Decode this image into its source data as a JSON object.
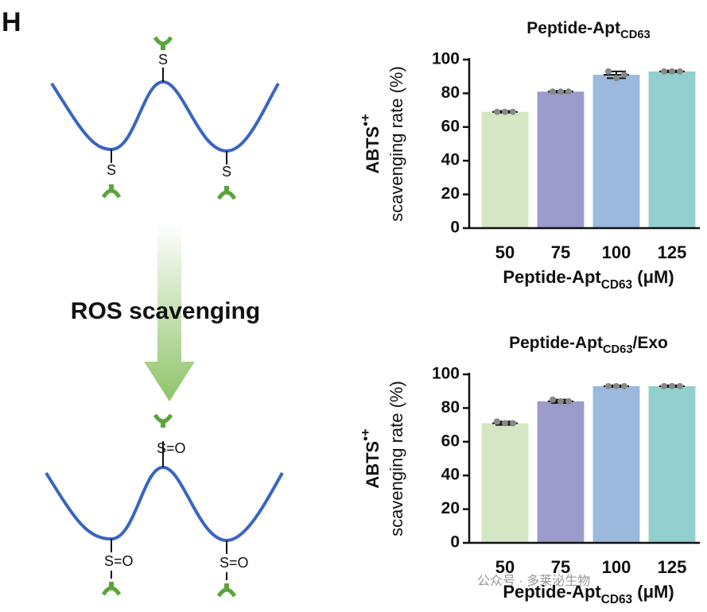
{
  "panel_label": "H",
  "diagram": {
    "top_labels": [
      "S",
      "S",
      "S"
    ],
    "arrow_label": "ROS scavenging",
    "bottom_labels": [
      "S=O",
      "S=O",
      "S=O"
    ]
  },
  "watermark": "公众号 · 多莱泌生物",
  "chart_data": [
    {
      "type": "bar",
      "title": [
        "Peptide-Apt",
        "CD63"
      ],
      "x_label": [
        "Peptide-Apt",
        "CD63",
        " (μM)"
      ],
      "y_label": [
        "ABTS",
        "•+",
        "scavenging rate (%)"
      ],
      "categories": [
        "50",
        "75",
        "100",
        "125"
      ],
      "values": [
        69,
        81,
        91,
        93
      ],
      "errors": [
        0.5,
        0.5,
        2,
        0.5
      ],
      "points": [
        [
          69,
          69,
          69
        ],
        [
          81,
          81,
          81
        ],
        [
          93,
          89,
          91
        ],
        [
          93,
          93,
          93
        ]
      ],
      "colors": [
        "#d4e6c4",
        "#9b9ccc",
        "#9ab9dd",
        "#93cfcf"
      ],
      "ylim": [
        0,
        100
      ],
      "yticks": [
        0,
        20,
        40,
        60,
        80,
        100
      ]
    },
    {
      "type": "bar",
      "title": [
        "Peptide-Apt",
        "CD63",
        "/Exo"
      ],
      "x_label": [
        "Peptide-Apt",
        "CD63",
        " (μM)"
      ],
      "y_label": [
        "ABTS",
        "•+",
        "scavenging rate (%)"
      ],
      "categories": [
        "50",
        "75",
        "100",
        "125"
      ],
      "values": [
        71,
        84,
        93,
        93
      ],
      "errors": [
        1,
        1,
        0.5,
        0.5
      ],
      "points": [
        [
          72,
          71,
          71
        ],
        [
          85,
          84,
          84
        ],
        [
          93,
          93,
          93
        ],
        [
          93,
          93,
          93
        ]
      ],
      "colors": [
        "#d4e6c4",
        "#9b9ccc",
        "#9ab9dd",
        "#93cfcf"
      ],
      "ylim": [
        0,
        100
      ],
      "yticks": [
        0,
        20,
        40,
        60,
        80,
        100
      ]
    }
  ]
}
